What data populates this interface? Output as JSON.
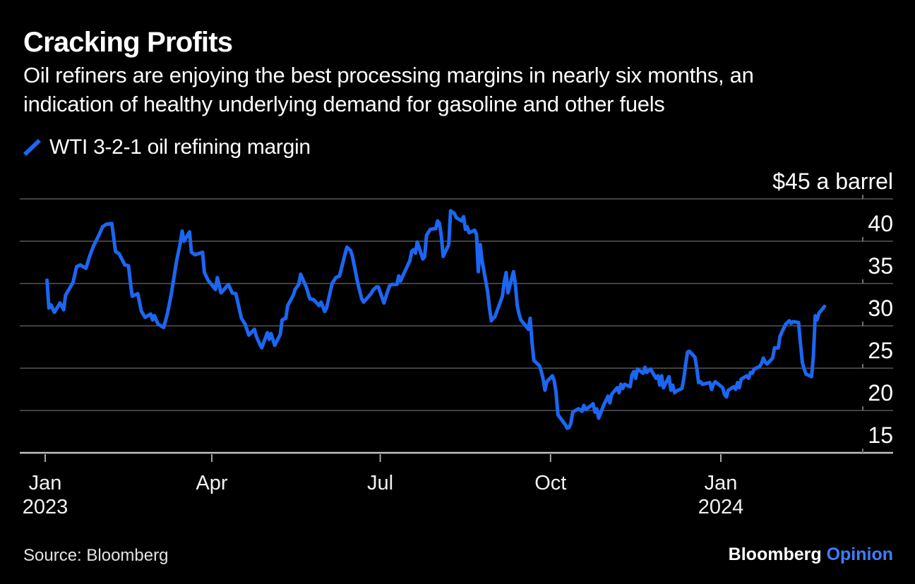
{
  "header": {
    "title": "Cracking Profits",
    "subtitle_line1": "Oil refiners are enjoying the best processing margins in nearly six months, an",
    "subtitle_line2": "indication of healthy underlying demand for gasoline and other fuels"
  },
  "legend": {
    "label": "WTI 3-2-1 oil refining margin",
    "marker_color": "#1c66f2"
  },
  "footer": {
    "source": "Source: Bloomberg",
    "logo_primary": "Bloomberg",
    "logo_secondary": "Opinion",
    "logo_secondary_color": "#3e7eff"
  },
  "chart_data": {
    "type": "line",
    "title": "Cracking Profits",
    "subtitle": "Oil refiners are enjoying the best processing margins in nearly six months, an indication of healthy underlying demand for gasoline and other fuels",
    "unit_label": "$45 a barrel",
    "xlabel": "",
    "ylabel": "$ a barrel",
    "ylim": [
      15,
      45
    ],
    "grid": true,
    "legend_position": "top-left",
    "x_start_date": "2023-01-01",
    "x_end_date": "2024-04-02",
    "yticks": [
      {
        "value": 45,
        "label": "$45 a barrel"
      },
      {
        "value": 40,
        "label": "40"
      },
      {
        "value": 35,
        "label": "35"
      },
      {
        "value": 30,
        "label": "30"
      },
      {
        "value": 25,
        "label": "25"
      },
      {
        "value": 20,
        "label": "20"
      },
      {
        "value": 15,
        "label": "15"
      }
    ],
    "xticks": [
      {
        "date": "2023-01-01",
        "label": "Jan",
        "year": "2023"
      },
      {
        "date": "2023-04-01",
        "label": "Apr"
      },
      {
        "date": "2023-07-01",
        "label": "Jul"
      },
      {
        "date": "2023-10-01",
        "label": "Oct"
      },
      {
        "date": "2024-01-01",
        "label": "Jan",
        "year": "2024"
      }
    ],
    "series": [
      {
        "name": "WTI 3-2-1 oil refining margin",
        "color": "#1c66f2",
        "points": [
          [
            "2023-01-02",
            35.4
          ],
          [
            "2023-01-03",
            32.1
          ],
          [
            "2023-01-04",
            32.5
          ],
          [
            "2023-01-06",
            31.6
          ],
          [
            "2023-01-09",
            32.7
          ],
          [
            "2023-01-11",
            31.9
          ],
          [
            "2023-01-12",
            33.6
          ],
          [
            "2023-01-16",
            35.1
          ],
          [
            "2023-01-18",
            37.0
          ],
          [
            "2023-01-20",
            37.2
          ],
          [
            "2023-01-23",
            36.8
          ],
          [
            "2023-01-25",
            38.2
          ],
          [
            "2023-01-27",
            39.4
          ],
          [
            "2023-01-30",
            40.7
          ],
          [
            "2023-02-01",
            41.7
          ],
          [
            "2023-02-03",
            42.0
          ],
          [
            "2023-02-06",
            42.1
          ],
          [
            "2023-02-08",
            38.8
          ],
          [
            "2023-02-10",
            38.5
          ],
          [
            "2023-02-13",
            37.2
          ],
          [
            "2023-02-15",
            37.1
          ],
          [
            "2023-02-16",
            35.2
          ],
          [
            "2023-02-17",
            33.5
          ],
          [
            "2023-02-20",
            33.8
          ],
          [
            "2023-02-22",
            31.7
          ],
          [
            "2023-02-24",
            31.0
          ],
          [
            "2023-02-27",
            31.4
          ],
          [
            "2023-02-28",
            30.7
          ],
          [
            "2023-03-01",
            31.2
          ],
          [
            "2023-03-03",
            30.2
          ],
          [
            "2023-03-06",
            29.8
          ],
          [
            "2023-03-08",
            31.4
          ],
          [
            "2023-03-10",
            33.6
          ],
          [
            "2023-03-13",
            37.7
          ],
          [
            "2023-03-15",
            39.8
          ],
          [
            "2023-03-16",
            41.2
          ],
          [
            "2023-03-17",
            40.0
          ],
          [
            "2023-03-20",
            41.1
          ],
          [
            "2023-03-21",
            38.7
          ],
          [
            "2023-03-23",
            38.4
          ],
          [
            "2023-03-27",
            38.7
          ],
          [
            "2023-03-28",
            36.3
          ],
          [
            "2023-03-30",
            35.4
          ],
          [
            "2023-03-31",
            35.1
          ],
          [
            "2023-04-03",
            34.3
          ],
          [
            "2023-04-04",
            35.7
          ],
          [
            "2023-04-06",
            33.9
          ],
          [
            "2023-04-10",
            34.9
          ],
          [
            "2023-04-12",
            33.9
          ],
          [
            "2023-04-14",
            33.8
          ],
          [
            "2023-04-17",
            30.9
          ],
          [
            "2023-04-19",
            30.2
          ],
          [
            "2023-04-21",
            28.9
          ],
          [
            "2023-04-24",
            29.6
          ],
          [
            "2023-04-25",
            28.8
          ],
          [
            "2023-04-27",
            27.8
          ],
          [
            "2023-04-28",
            27.4
          ],
          [
            "2023-05-01",
            29.2
          ],
          [
            "2023-05-02",
            28.4
          ],
          [
            "2023-05-03",
            29.1
          ],
          [
            "2023-05-05",
            27.7
          ],
          [
            "2023-05-08",
            29.0
          ],
          [
            "2023-05-09",
            30.7
          ],
          [
            "2023-05-11",
            30.9
          ],
          [
            "2023-05-12",
            32.4
          ],
          [
            "2023-05-15",
            33.6
          ],
          [
            "2023-05-16",
            34.3
          ],
          [
            "2023-05-18",
            34.9
          ],
          [
            "2023-05-19",
            36.1
          ],
          [
            "2023-05-22",
            34.6
          ],
          [
            "2023-05-24",
            33.2
          ],
          [
            "2023-05-26",
            33.1
          ],
          [
            "2023-05-29",
            32.4
          ],
          [
            "2023-05-30",
            32.8
          ],
          [
            "2023-06-01",
            31.7
          ],
          [
            "2023-06-02",
            32.1
          ],
          [
            "2023-06-05",
            35.0
          ],
          [
            "2023-06-07",
            35.7
          ],
          [
            "2023-06-09",
            35.9
          ],
          [
            "2023-06-12",
            38.5
          ],
          [
            "2023-06-13",
            39.3
          ],
          [
            "2023-06-15",
            38.9
          ],
          [
            "2023-06-16",
            38.2
          ],
          [
            "2023-06-19",
            34.9
          ],
          [
            "2023-06-21",
            33.2
          ],
          [
            "2023-06-22",
            32.8
          ],
          [
            "2023-06-26",
            33.8
          ],
          [
            "2023-06-27",
            34.2
          ],
          [
            "2023-06-29",
            34.6
          ],
          [
            "2023-06-30",
            34.6
          ],
          [
            "2023-07-03",
            32.7
          ],
          [
            "2023-07-05",
            34.1
          ],
          [
            "2023-07-06",
            34.7
          ],
          [
            "2023-07-07",
            34.9
          ],
          [
            "2023-07-10",
            34.9
          ],
          [
            "2023-07-11",
            35.9
          ],
          [
            "2023-07-12",
            35.3
          ],
          [
            "2023-07-14",
            36.3
          ],
          [
            "2023-07-17",
            37.7
          ],
          [
            "2023-07-18",
            38.8
          ],
          [
            "2023-07-19",
            39.0
          ],
          [
            "2023-07-20",
            38.6
          ],
          [
            "2023-07-21",
            39.9
          ],
          [
            "2023-07-24",
            37.9
          ],
          [
            "2023-07-25",
            38.2
          ],
          [
            "2023-07-26",
            40.7
          ],
          [
            "2023-07-28",
            41.4
          ],
          [
            "2023-07-31",
            41.5
          ],
          [
            "2023-08-01",
            42.4
          ],
          [
            "2023-08-02",
            42.1
          ],
          [
            "2023-08-03",
            40.6
          ],
          [
            "2023-08-04",
            38.2
          ],
          [
            "2023-08-07",
            39.6
          ],
          [
            "2023-08-08",
            43.6
          ],
          [
            "2023-08-10",
            43.3
          ],
          [
            "2023-08-11",
            42.8
          ],
          [
            "2023-08-14",
            42.4
          ],
          [
            "2023-08-15",
            42.9
          ],
          [
            "2023-08-16",
            41.4
          ],
          [
            "2023-08-17",
            41.7
          ],
          [
            "2023-08-18",
            41.0
          ],
          [
            "2023-08-21",
            41.3
          ],
          [
            "2023-08-22",
            40.8
          ],
          [
            "2023-08-23",
            36.4
          ],
          [
            "2023-08-24",
            39.6
          ],
          [
            "2023-08-25",
            37.7
          ],
          [
            "2023-08-28",
            34.1
          ],
          [
            "2023-08-29",
            32.1
          ],
          [
            "2023-08-30",
            30.6
          ],
          [
            "2023-08-31",
            30.9
          ],
          [
            "2023-09-01",
            31.1
          ],
          [
            "2023-09-05",
            33.5
          ],
          [
            "2023-09-06",
            35.2
          ],
          [
            "2023-09-07",
            36.3
          ],
          [
            "2023-09-08",
            33.9
          ],
          [
            "2023-09-11",
            36.4
          ],
          [
            "2023-09-12",
            34.9
          ],
          [
            "2023-09-13",
            32.4
          ],
          [
            "2023-09-14",
            31.4
          ],
          [
            "2023-09-15",
            30.7
          ],
          [
            "2023-09-18",
            29.9
          ],
          [
            "2023-09-19",
            29.6
          ],
          [
            "2023-09-20",
            30.9
          ],
          [
            "2023-09-21",
            28.0
          ],
          [
            "2023-09-22",
            25.9
          ],
          [
            "2023-09-25",
            25.3
          ],
          [
            "2023-09-26",
            24.6
          ],
          [
            "2023-09-27",
            23.7
          ],
          [
            "2023-09-28",
            22.4
          ],
          [
            "2023-09-29",
            23.4
          ],
          [
            "2023-10-02",
            24.1
          ],
          [
            "2023-10-03",
            23.5
          ],
          [
            "2023-10-04",
            22.1
          ],
          [
            "2023-10-05",
            19.5
          ],
          [
            "2023-10-06",
            19.2
          ],
          [
            "2023-10-09",
            18.3
          ],
          [
            "2023-10-10",
            17.9
          ],
          [
            "2023-10-11",
            18.0
          ],
          [
            "2023-10-12",
            18.5
          ],
          [
            "2023-10-13",
            19.8
          ],
          [
            "2023-10-16",
            20.2
          ],
          [
            "2023-10-17",
            20.1
          ],
          [
            "2023-10-18",
            19.9
          ],
          [
            "2023-10-19",
            20.6
          ],
          [
            "2023-10-20",
            20.1
          ],
          [
            "2023-10-23",
            20.6
          ],
          [
            "2023-10-24",
            20.8
          ],
          [
            "2023-10-25",
            19.8
          ],
          [
            "2023-10-26",
            20.2
          ],
          [
            "2023-10-27",
            19.1
          ],
          [
            "2023-10-30",
            20.8
          ],
          [
            "2023-10-31",
            21.2
          ],
          [
            "2023-11-01",
            21.7
          ],
          [
            "2023-11-02",
            20.9
          ],
          [
            "2023-11-03",
            21.9
          ],
          [
            "2023-11-06",
            22.7
          ],
          [
            "2023-11-07",
            22.1
          ],
          [
            "2023-11-08",
            23.1
          ],
          [
            "2023-11-09",
            22.6
          ],
          [
            "2023-11-10",
            23.1
          ],
          [
            "2023-11-13",
            22.8
          ],
          [
            "2023-11-14",
            24.2
          ],
          [
            "2023-11-15",
            24.6
          ],
          [
            "2023-11-16",
            23.8
          ],
          [
            "2023-11-17",
            24.9
          ],
          [
            "2023-11-20",
            24.4
          ],
          [
            "2023-11-21",
            25.1
          ],
          [
            "2023-11-22",
            24.5
          ],
          [
            "2023-11-24",
            24.9
          ],
          [
            "2023-11-27",
            23.8
          ],
          [
            "2023-11-28",
            24.1
          ],
          [
            "2023-11-29",
            23.0
          ],
          [
            "2023-11-30",
            24.1
          ],
          [
            "2023-12-01",
            22.7
          ],
          [
            "2023-12-04",
            24.0
          ],
          [
            "2023-12-05",
            22.4
          ],
          [
            "2023-12-06",
            23.0
          ],
          [
            "2023-12-07",
            22.1
          ],
          [
            "2023-12-08",
            22.3
          ],
          [
            "2023-12-11",
            22.6
          ],
          [
            "2023-12-12",
            23.8
          ],
          [
            "2023-12-13",
            25.5
          ],
          [
            "2023-12-14",
            26.9
          ],
          [
            "2023-12-15",
            27.0
          ],
          [
            "2023-12-18",
            26.3
          ],
          [
            "2023-12-19",
            25.0
          ],
          [
            "2023-12-20",
            23.3
          ],
          [
            "2023-12-21",
            23.4
          ],
          [
            "2023-12-22",
            23.1
          ],
          [
            "2023-12-26",
            23.3
          ],
          [
            "2023-12-27",
            22.5
          ],
          [
            "2023-12-28",
            23.1
          ],
          [
            "2023-12-29",
            23.4
          ],
          [
            "2024-01-02",
            22.7
          ],
          [
            "2024-01-03",
            21.9
          ],
          [
            "2024-01-04",
            21.6
          ],
          [
            "2024-01-05",
            22.4
          ],
          [
            "2024-01-08",
            22.8
          ],
          [
            "2024-01-09",
            22.5
          ],
          [
            "2024-01-10",
            23.3
          ],
          [
            "2024-01-11",
            22.7
          ],
          [
            "2024-01-12",
            23.7
          ],
          [
            "2024-01-15",
            24.1
          ],
          [
            "2024-01-16",
            23.8
          ],
          [
            "2024-01-17",
            24.5
          ],
          [
            "2024-01-18",
            24.4
          ],
          [
            "2024-01-19",
            24.9
          ],
          [
            "2024-01-22",
            25.2
          ],
          [
            "2024-01-23",
            25.6
          ],
          [
            "2024-01-24",
            26.2
          ],
          [
            "2024-01-25",
            25.7
          ],
          [
            "2024-01-26",
            25.5
          ],
          [
            "2024-01-29",
            26.2
          ],
          [
            "2024-01-30",
            27.4
          ],
          [
            "2024-02-01",
            27.4
          ],
          [
            "2024-02-02",
            28.8
          ],
          [
            "2024-02-05",
            30.2
          ],
          [
            "2024-02-06",
            30.4
          ],
          [
            "2024-02-07",
            30.6
          ],
          [
            "2024-02-08",
            30.3
          ],
          [
            "2024-02-09",
            30.5
          ],
          [
            "2024-02-12",
            30.4
          ],
          [
            "2024-02-13",
            28.0
          ],
          [
            "2024-02-14",
            25.7
          ],
          [
            "2024-02-15",
            24.9
          ],
          [
            "2024-02-16",
            24.3
          ],
          [
            "2024-02-19",
            24.0
          ],
          [
            "2024-02-20",
            26.5
          ],
          [
            "2024-02-21",
            31.2
          ],
          [
            "2024-02-22",
            30.7
          ],
          [
            "2024-02-23",
            31.5
          ],
          [
            "2024-02-26",
            32.3
          ]
        ]
      }
    ]
  }
}
